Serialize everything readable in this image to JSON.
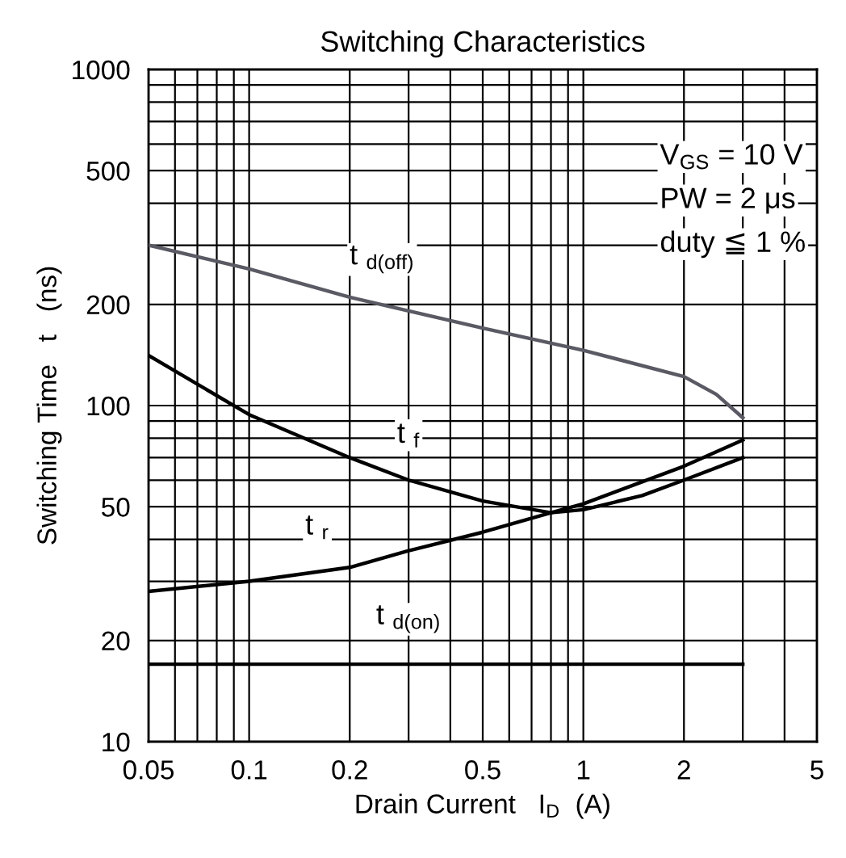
{
  "chart_data": {
    "type": "line",
    "title": "Switching Characteristics",
    "xlabel": "Drain Current   I$_{D}$  (A)",
    "ylabel": "Switching Time   t   (ns)",
    "log": "xy",
    "grid": true,
    "marker": "none",
    "line_style": "solid",
    "xlim": [
      0.05,
      5
    ],
    "ylim": [
      10,
      1000
    ],
    "xticks": [
      0.05,
      0.1,
      0.2,
      0.5,
      1,
      2,
      5
    ],
    "yticks": [
      10,
      20,
      50,
      100,
      200,
      500,
      1000
    ],
    "series": [
      {
        "color": "#5a5a64",
        "x": [
          0.05,
          0.1,
          0.2,
          0.5,
          1,
          2,
          2.5,
          3
        ],
        "values": [
          300,
          255,
          210,
          170,
          146,
          122,
          108,
          92
        ]
      },
      {
        "color": "#000000",
        "x": [
          0.05,
          0.1,
          0.2,
          0.3,
          0.5,
          0.8,
          1,
          1.5,
          2,
          3
        ],
        "values": [
          141,
          94,
          70,
          60,
          52,
          48,
          49,
          54,
          60,
          70
        ]
      },
      {
        "color": "#000000",
        "x": [
          0.05,
          0.1,
          0.2,
          0.3,
          0.5,
          0.8,
          1,
          2,
          3
        ],
        "values": [
          28,
          30,
          33,
          37,
          42,
          48,
          51,
          66,
          79
        ]
      },
      {
        "color": "#000000",
        "x": [
          0.05,
          3
        ],
        "values": [
          17,
          17
        ]
      }
    ],
    "annotations": [
      {
        "text": "t $_{d(off)}$",
        "x": 0.25,
        "y": 200
      },
      {
        "text": "t $_{f}$",
        "x": 0.3,
        "y": 60
      },
      {
        "text": "t $_{r}$",
        "x": 0.16,
        "y": 32
      },
      {
        "text": "t $_{d(on)}$",
        "x": 0.3,
        "y": 17
      },
      "V$_{GS}$ = 10 V",
      "PW = 2 μs",
      "duty ≦ 1 %"
    ]
  }
}
